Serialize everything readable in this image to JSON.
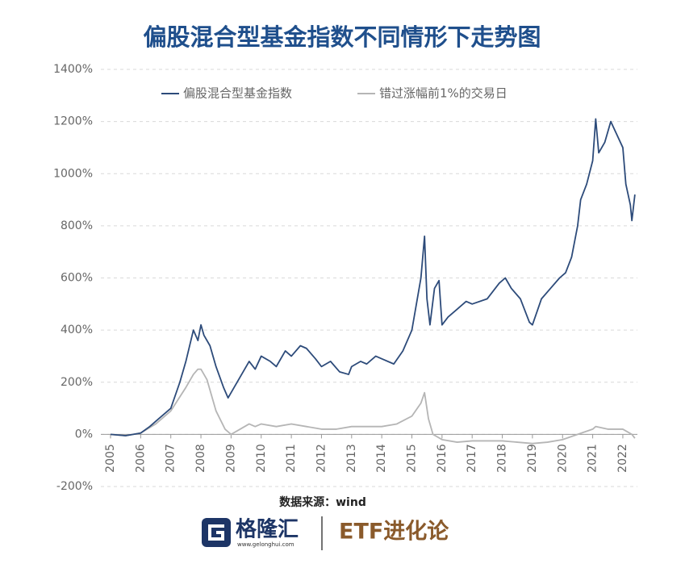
{
  "chart_data": {
    "type": "line",
    "title": "偏股混合型基金指数不同情形下走势图",
    "xlim": [
      2005,
      2022.4
    ],
    "xticks": [
      2005,
      2006,
      2007,
      2008,
      2009,
      2010,
      2011,
      2012,
      2013,
      2014,
      2015,
      2016,
      2017,
      2018,
      2019,
      2020,
      2021,
      2022
    ],
    "ylim": [
      -200,
      1400
    ],
    "yticks": [
      {
        "value": -200,
        "label": "-200%"
      },
      {
        "value": 0,
        "label": "0%"
      },
      {
        "value": 200,
        "label": "200%"
      },
      {
        "value": 400,
        "label": "400%"
      },
      {
        "value": 600,
        "label": "600%"
      },
      {
        "value": 800,
        "label": "800%"
      },
      {
        "value": 1000,
        "label": "1000%"
      },
      {
        "value": 1200,
        "label": "1200%"
      },
      {
        "value": 1400,
        "label": "1400%"
      }
    ],
    "grid": true,
    "legend": "top-left",
    "series": [
      {
        "name": "偏股混合型基金指数",
        "color": "#2d4b7a",
        "x": [
          2005.0,
          2005.5,
          2006.0,
          2006.3,
          2006.6,
          2007.0,
          2007.3,
          2007.5,
          2007.75,
          2007.9,
          2008.0,
          2008.1,
          2008.3,
          2008.5,
          2008.75,
          2008.9,
          2009.0,
          2009.3,
          2009.6,
          2009.8,
          2010.0,
          2010.3,
          2010.5,
          2010.8,
          2011.0,
          2011.3,
          2011.5,
          2011.8,
          2012.0,
          2012.3,
          2012.6,
          2012.9,
          2013.0,
          2013.3,
          2013.5,
          2013.8,
          2014.0,
          2014.4,
          2014.7,
          2015.0,
          2015.3,
          2015.42,
          2015.5,
          2015.6,
          2015.75,
          2015.9,
          2016.0,
          2016.2,
          2016.5,
          2016.8,
          2017.0,
          2017.5,
          2017.9,
          2018.1,
          2018.3,
          2018.6,
          2018.9,
          2019.0,
          2019.3,
          2019.6,
          2019.9,
          2020.1,
          2020.3,
          2020.5,
          2020.6,
          2020.8,
          2021.0,
          2021.1,
          2021.2,
          2021.4,
          2021.6,
          2021.8,
          2022.0,
          2022.1,
          2022.25,
          2022.3,
          2022.4
        ],
        "values": [
          0,
          -5,
          5,
          30,
          60,
          100,
          200,
          280,
          400,
          360,
          420,
          380,
          340,
          260,
          180,
          140,
          160,
          220,
          280,
          250,
          300,
          280,
          260,
          320,
          300,
          340,
          330,
          290,
          260,
          280,
          240,
          230,
          260,
          280,
          270,
          300,
          290,
          270,
          320,
          400,
          600,
          760,
          520,
          420,
          560,
          590,
          420,
          450,
          480,
          510,
          500,
          520,
          580,
          600,
          560,
          520,
          430,
          420,
          520,
          560,
          600,
          620,
          680,
          800,
          900,
          960,
          1050,
          1210,
          1080,
          1120,
          1200,
          1150,
          1100,
          960,
          880,
          820,
          920
        ]
      },
      {
        "name": "错过涨幅前1%的交易日",
        "color": "#b5b5b5",
        "x": [
          2005.0,
          2005.5,
          2006.0,
          2006.5,
          2007.0,
          2007.5,
          2007.75,
          2007.9,
          2008.0,
          2008.2,
          2008.5,
          2008.8,
          2009.0,
          2009.3,
          2009.6,
          2009.8,
          2010.0,
          2010.5,
          2011.0,
          2011.5,
          2012.0,
          2012.5,
          2013.0,
          2013.5,
          2014.0,
          2014.5,
          2015.0,
          2015.3,
          2015.42,
          2015.55,
          2015.7,
          2016.0,
          2016.5,
          2017.0,
          2017.5,
          2018.0,
          2018.5,
          2019.0,
          2019.5,
          2020.0,
          2020.5,
          2021.0,
          2021.1,
          2021.5,
          2022.0,
          2022.3,
          2022.4
        ],
        "values": [
          0,
          -5,
          5,
          40,
          90,
          180,
          230,
          250,
          250,
          210,
          90,
          20,
          0,
          20,
          40,
          30,
          40,
          30,
          40,
          30,
          20,
          20,
          30,
          30,
          30,
          40,
          70,
          120,
          160,
          60,
          0,
          -20,
          -30,
          -25,
          -25,
          -25,
          -30,
          -35,
          -30,
          -20,
          0,
          20,
          30,
          20,
          20,
          0,
          -15
        ]
      }
    ]
  },
  "source": "数据来源：wind",
  "footer": {
    "brand": "格隆汇",
    "site": "www.gelonghui.com",
    "column": "ETF进化论"
  }
}
